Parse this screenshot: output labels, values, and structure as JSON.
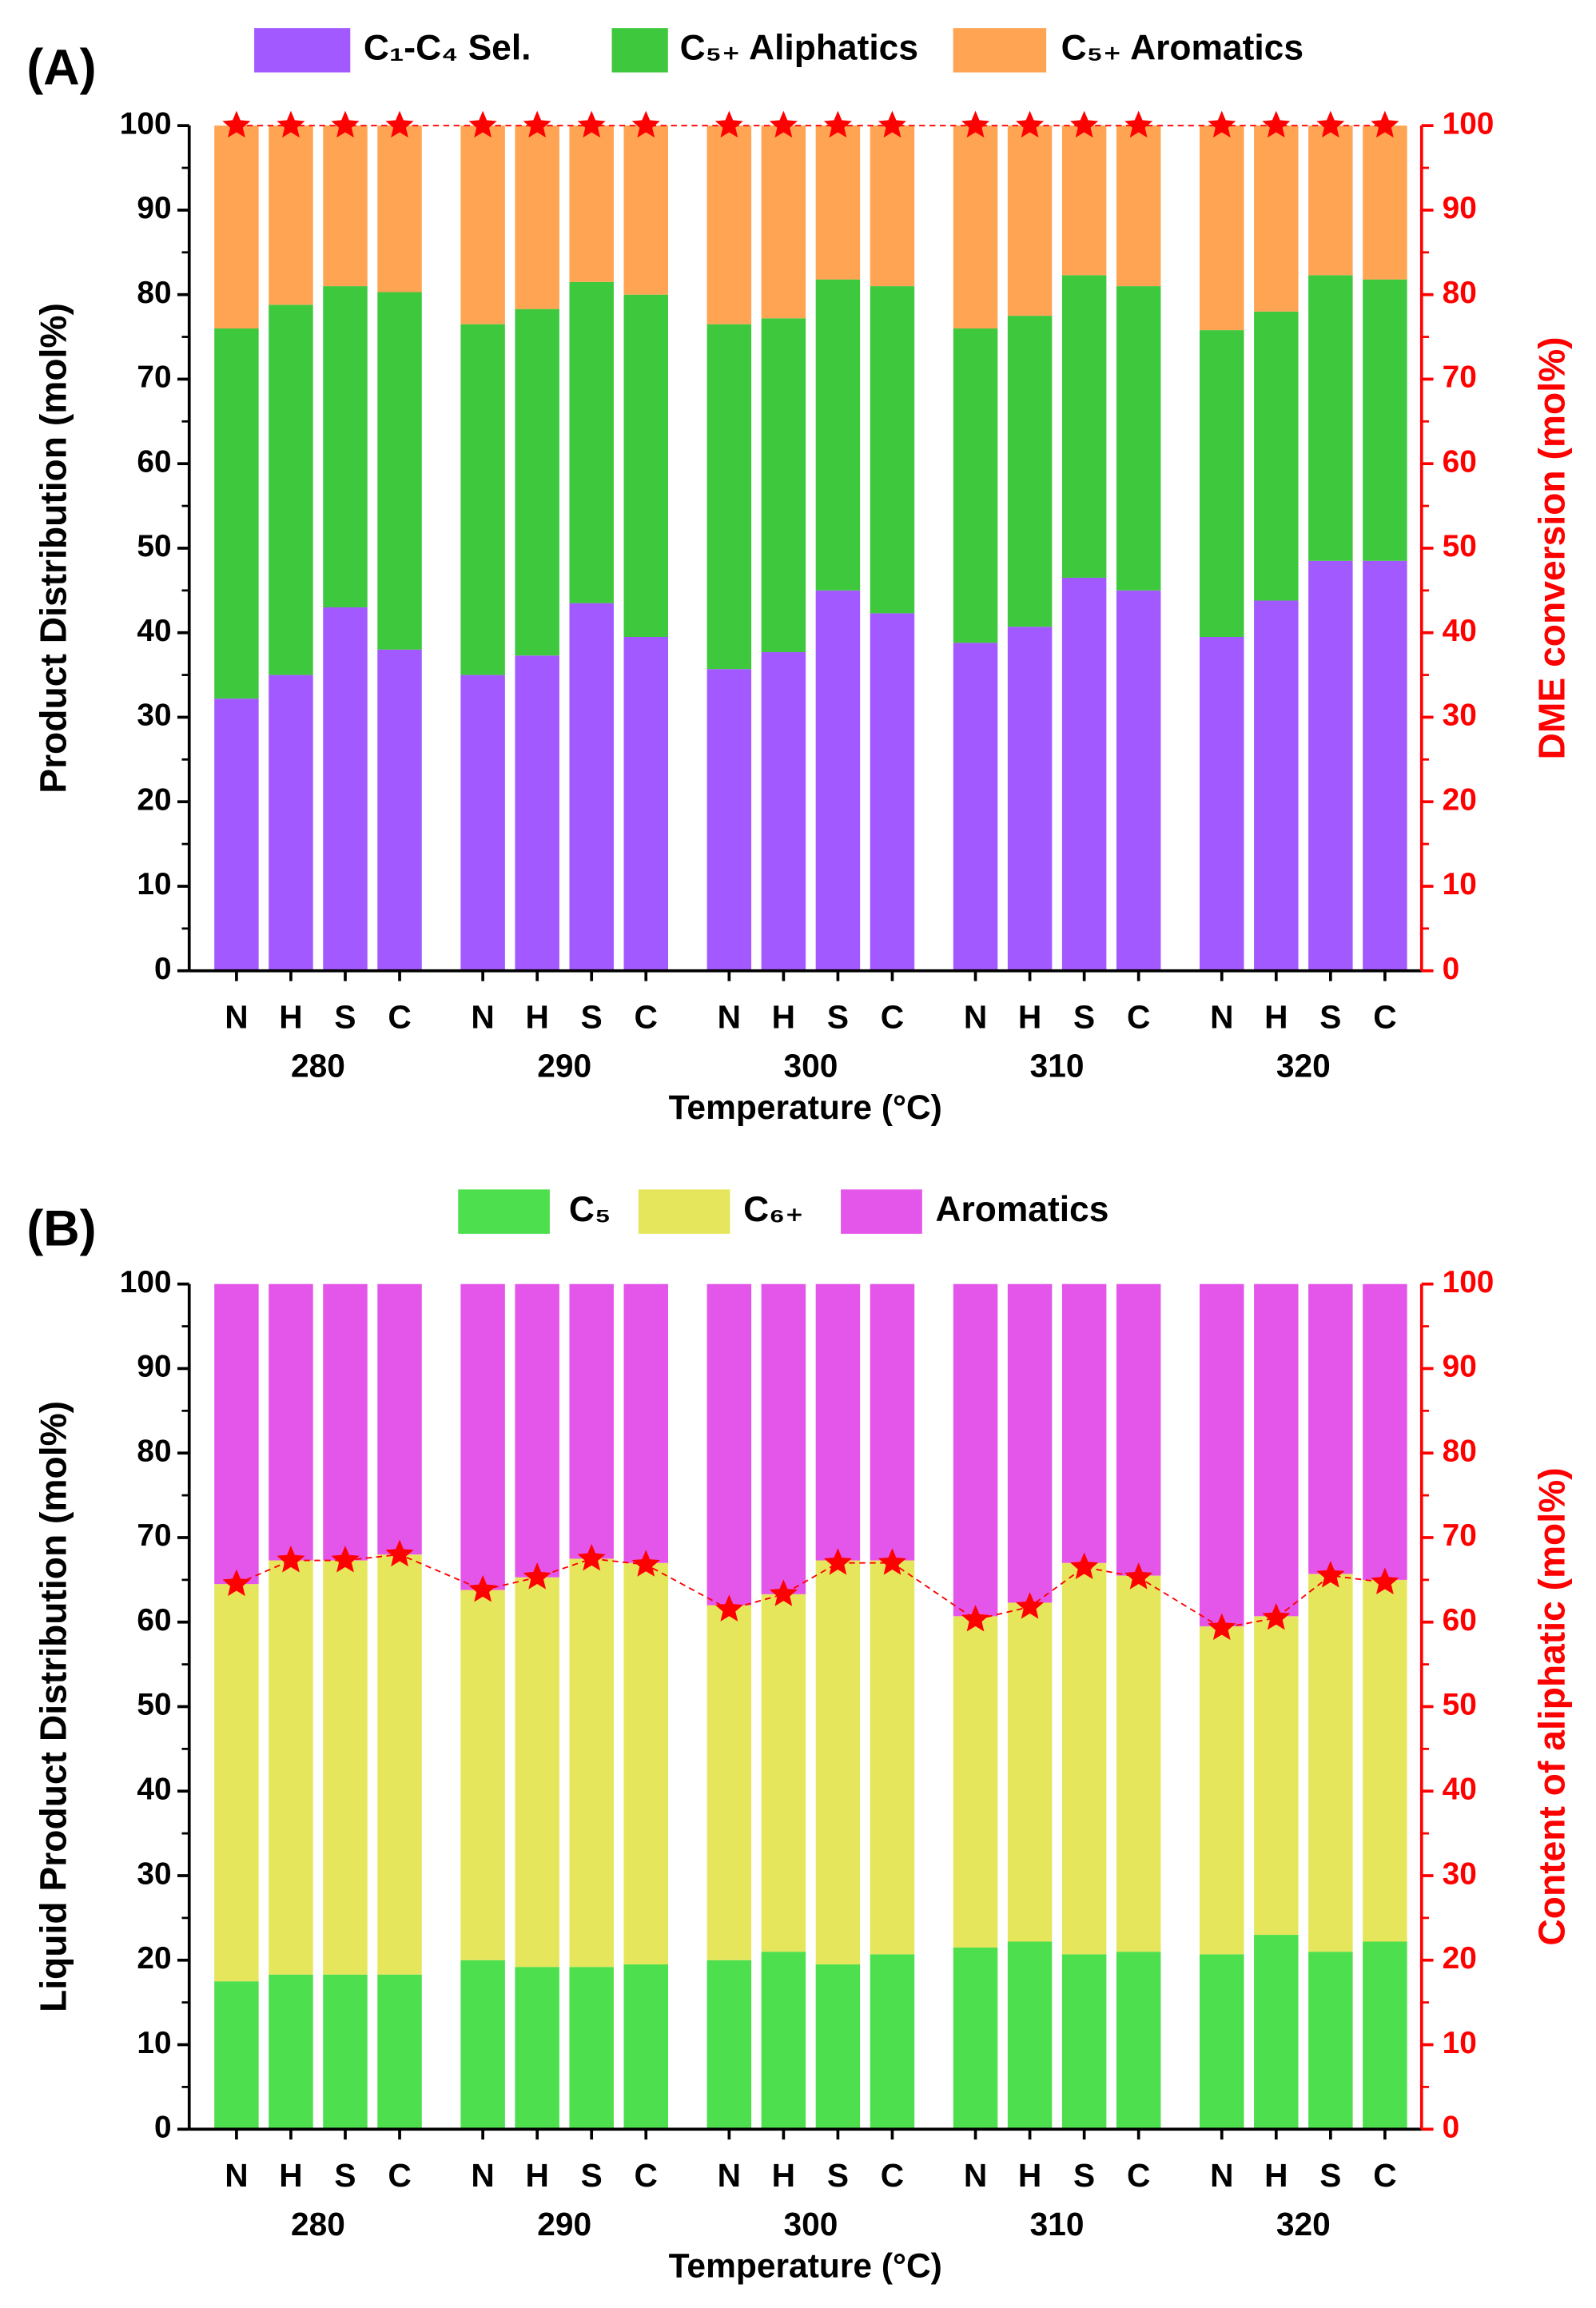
{
  "chart_data": [
    {
      "type": "bar",
      "stacked": true,
      "label": "(A)",
      "categories": [
        "N",
        "H",
        "S",
        "C",
        "N",
        "H",
        "S",
        "C",
        "N",
        "H",
        "S",
        "C",
        "N",
        "H",
        "S",
        "C",
        "N",
        "H",
        "S",
        "C"
      ],
      "groups": [
        "280",
        "290",
        "300",
        "310",
        "320"
      ],
      "xlabel": "Temperature (°C)",
      "ylabel": "Product Distribution (mol%)",
      "y2label": "DME conversion (mol%)",
      "series": [
        {
          "name": "C₁-C₄ Sel.",
          "color": "#a259ff",
          "values": [
            32.2,
            35,
            43,
            38,
            35,
            37.3,
            43.5,
            39.5,
            35.7,
            37.7,
            45,
            42.3,
            38.8,
            40.7,
            46.5,
            45,
            39.5,
            43.8,
            48.5,
            48.5
          ]
        },
        {
          "name": "C₅₊ Aliphatics",
          "color": "#3ec83e",
          "values": [
            43.8,
            43.8,
            38,
            42.3,
            41.5,
            41,
            38,
            40.5,
            40.8,
            39.5,
            36.8,
            38.7,
            37.2,
            36.8,
            35.8,
            36,
            36.3,
            34.2,
            33.8,
            33.3
          ]
        },
        {
          "name": "C₅₊ Aromatics",
          "color": "#ffa453",
          "values": [
            24,
            21.2,
            19,
            19.7,
            23.5,
            21.7,
            18.5,
            20,
            23.5,
            22.8,
            18.2,
            19,
            24,
            22.5,
            17.7,
            19,
            24.2,
            22,
            17.7,
            18.2
          ]
        }
      ],
      "markers": {
        "axis": "y2",
        "marker": "star",
        "color": "#ff0000",
        "values": [
          100,
          100,
          100,
          100,
          100,
          100,
          100,
          100,
          100,
          100,
          100,
          100,
          100,
          100,
          100,
          100,
          100,
          100,
          100,
          100
        ]
      },
      "ylim": [
        0,
        100
      ],
      "yticks": [
        0,
        10,
        20,
        30,
        40,
        50,
        60,
        70,
        80,
        90,
        100
      ],
      "y2lim": [
        0,
        100
      ],
      "y2ticks": [
        0,
        10,
        20,
        30,
        40,
        50,
        60,
        70,
        80,
        90,
        100
      ],
      "y2color": "#ff0000"
    },
    {
      "type": "bar",
      "stacked": true,
      "label": "(B)",
      "categories": [
        "N",
        "H",
        "S",
        "C",
        "N",
        "H",
        "S",
        "C",
        "N",
        "H",
        "S",
        "C",
        "N",
        "H",
        "S",
        "C",
        "N",
        "H",
        "S",
        "C"
      ],
      "groups": [
        "280",
        "290",
        "300",
        "310",
        "320"
      ],
      "xlabel": "Temperature (°C)",
      "ylabel": "Liquid Product Distribution (mol%)",
      "y2label": "Content of aliphatic (mol%)",
      "series": [
        {
          "name": "C₅",
          "color": "#4ddf4d",
          "values": [
            17.5,
            18.3,
            18.3,
            18.3,
            20,
            19.2,
            19.2,
            19.5,
            20,
            21,
            19.5,
            20.7,
            21.5,
            22.2,
            20.7,
            21,
            20.7,
            23,
            21,
            22.2
          ]
        },
        {
          "name": "C₆₊",
          "color": "#e6e65c",
          "values": [
            47,
            49,
            49,
            49.7,
            43.8,
            46.1,
            48.3,
            47.5,
            42,
            42.3,
            47.8,
            46.6,
            39.2,
            40.1,
            46.3,
            44.5,
            38.8,
            37.7,
            44.7,
            42.8
          ]
        },
        {
          "name": "Aromatics",
          "color": "#e455ea",
          "values": [
            35.5,
            32.7,
            32.7,
            32,
            36.2,
            34.7,
            32.5,
            33,
            38,
            36.7,
            32.7,
            32.7,
            39.3,
            37.7,
            33,
            34.5,
            40.5,
            39.3,
            34.3,
            35
          ]
        }
      ],
      "markers": {
        "axis": "y2",
        "marker": "star",
        "color": "#ff0000",
        "values": [
          64.5,
          67.3,
          67.3,
          68,
          63.8,
          65.3,
          67.5,
          66.8,
          61.5,
          63.3,
          67,
          67,
          60.3,
          61.8,
          66.5,
          65.3,
          59.3,
          60.5,
          65.5,
          64.7
        ]
      },
      "ylim": [
        0,
        100
      ],
      "yticks": [
        0,
        10,
        20,
        30,
        40,
        50,
        60,
        70,
        80,
        90,
        100
      ],
      "y2lim": [
        0,
        100
      ],
      "y2ticks": [
        0,
        10,
        20,
        30,
        40,
        50,
        60,
        70,
        80,
        90,
        100
      ],
      "y2color": "#ff0000"
    }
  ]
}
